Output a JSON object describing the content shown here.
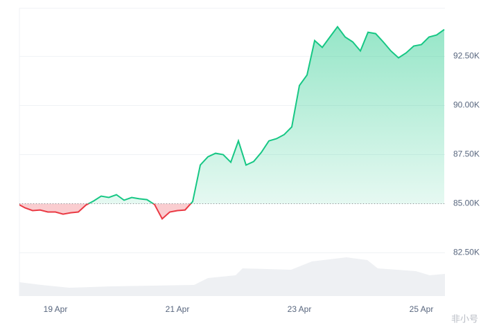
{
  "chart_data": {
    "type": "line",
    "categories": [
      null,
      null,
      null,
      null,
      null,
      "19 Apr",
      null,
      null,
      null,
      null,
      null,
      null,
      null,
      null,
      null,
      null,
      null,
      null,
      null,
      null,
      null,
      "21 Apr",
      null,
      null,
      null,
      null,
      null,
      null,
      null,
      null,
      null,
      null,
      null,
      null,
      null,
      null,
      null,
      "23 Apr",
      null,
      null,
      null,
      null,
      null,
      null,
      null,
      null,
      null,
      null,
      null,
      null,
      null,
      null,
      null,
      "25 Apr",
      null,
      null,
      null
    ],
    "values": [
      85000,
      84790,
      84650,
      84680,
      84580,
      84580,
      84470,
      84540,
      84580,
      84930,
      85140,
      85390,
      85320,
      85460,
      85180,
      85320,
      85250,
      85210,
      84960,
      84230,
      84580,
      84650,
      84680,
      85110,
      86970,
      87390,
      87570,
      87500,
      87110,
      88200,
      86970,
      87150,
      87610,
      88200,
      88310,
      88520,
      88910,
      91020,
      91550,
      93310,
      92960,
      93490,
      94010,
      93490,
      93240,
      92780,
      93730,
      93660,
      93240,
      92780,
      92430,
      92680,
      93030,
      93100,
      93490,
      93590,
      93870
    ],
    "baseline": 85000,
    "up_color": "#16c784",
    "down_color": "#ea3943",
    "ylim": [
      80300,
      94950
    ],
    "yticks": [
      {
        "value": 82500,
        "label": "82.50K"
      },
      {
        "value": 85000,
        "label": "85.00K"
      },
      {
        "value": 87500,
        "label": "87.50K"
      },
      {
        "value": 90000,
        "label": "90.00K"
      },
      {
        "value": 92500,
        "label": "92.50K"
      }
    ],
    "grid": true,
    "watermark": "非小号"
  }
}
